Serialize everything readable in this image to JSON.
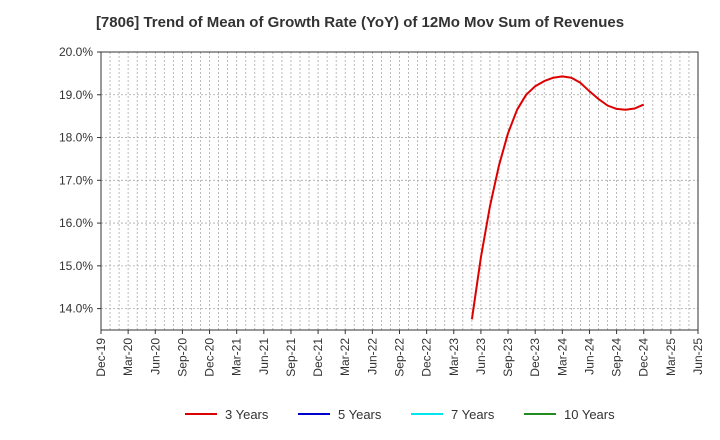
{
  "chart_data": {
    "type": "line",
    "title": "[7806]  Trend of Mean of Growth Rate (YoY) of 12Mo Mov Sum of Revenues",
    "xlabel": "",
    "ylabel": "",
    "x_ticks": [
      "Dec-19",
      "Mar-20",
      "Jun-20",
      "Sep-20",
      "Dec-20",
      "Mar-21",
      "Jun-21",
      "Sep-21",
      "Dec-21",
      "Mar-22",
      "Jun-22",
      "Sep-22",
      "Dec-22",
      "Mar-23",
      "Jun-23",
      "Sep-23",
      "Dec-23",
      "Mar-24",
      "Jun-24",
      "Sep-24",
      "Dec-24",
      "Mar-25",
      "Jun-25"
    ],
    "y_ticks": [
      14.0,
      15.0,
      16.0,
      17.0,
      18.0,
      19.0,
      20.0
    ],
    "y_tick_labels": [
      "14.0%",
      "15.0%",
      "16.0%",
      "17.0%",
      "18.0%",
      "19.0%",
      "20.0%"
    ],
    "ylim": [
      13.5,
      20.0
    ],
    "x_range_months": [
      0,
      66
    ],
    "grid": true,
    "legend_position": "bottom",
    "series": [
      {
        "name": "3 Years",
        "color": "#dd0000",
        "x_months": [
          41,
          42,
          43,
          44,
          45,
          46,
          47,
          48,
          49,
          50,
          51,
          52,
          53,
          54,
          55,
          56,
          57,
          58,
          59,
          60
        ],
        "values": [
          13.75,
          15.2,
          16.4,
          17.35,
          18.1,
          18.65,
          19.0,
          19.2,
          19.32,
          19.4,
          19.43,
          19.4,
          19.28,
          19.08,
          18.9,
          18.75,
          18.67,
          18.65,
          18.68,
          18.77
        ]
      },
      {
        "name": "5 Years",
        "color": "#0000cc",
        "x_months": [],
        "values": []
      },
      {
        "name": "7 Years",
        "color": "#00e5ee",
        "x_months": [],
        "values": []
      },
      {
        "name": "10 Years",
        "color": "#228b22",
        "x_months": [],
        "values": []
      }
    ]
  }
}
